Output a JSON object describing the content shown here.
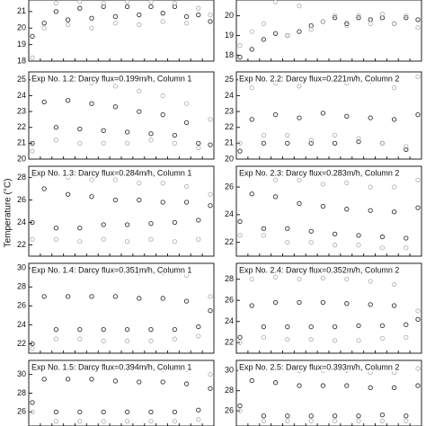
{
  "ylabel": "Temperature (°C)",
  "chart_data": [
    {
      "type": "scatter",
      "ylim": [
        18,
        21.7
      ],
      "yticks": [
        18,
        19,
        20,
        21
      ],
      "series": [
        {
          "color": "#333333",
          "values": [
            19.5,
            20.3,
            21,
            20.5,
            21.2,
            20.6,
            21.3,
            20.7,
            21.3,
            20.8,
            21.3,
            20.9,
            21.3,
            20.7,
            20.8,
            20.4
          ]
        },
        {
          "color": "#b5b5b5",
          "values": [
            18.2,
            20,
            21.5,
            20.2,
            21.6,
            20,
            21.5,
            20.3,
            21.6,
            20.2,
            21.6,
            20.4,
            21.5,
            20.3,
            21.2,
            20.8
          ]
        }
      ]
    },
    {
      "type": "scatter",
      "ylim": [
        17.7,
        20.8
      ],
      "yticks": [
        18,
        19,
        20
      ],
      "series": [
        {
          "color": "#333333",
          "values": [
            17.9,
            18.3,
            18.8,
            19.1,
            19.0,
            19.2,
            19.5,
            19.7,
            19.9,
            19.6,
            19.9,
            19.8,
            19.9,
            19.6,
            19.9,
            19.8
          ]
        },
        {
          "color": "#b5b5b5",
          "values": [
            18.5,
            19.2,
            19.6,
            20.7,
            19.0,
            20.5,
            19.3,
            19.7,
            20.0,
            19.5,
            20.0,
            19.6,
            20.1,
            19.6,
            20.0,
            19.4
          ]
        }
      ]
    },
    {
      "type": "scatter",
      "title": "Exp No. 1.2: Darcy flux=0.199m/h, Column 1",
      "ylim": [
        20,
        25.5
      ],
      "yticks": [
        20,
        21,
        22,
        23,
        24,
        25
      ],
      "series": [
        {
          "color": "#333333",
          "values": [
            21,
            23.6,
            22,
            23.7,
            21.9,
            23.5,
            21.8,
            23.3,
            21.7,
            23.0,
            21.6,
            22.8,
            21.5,
            22.3,
            21.0,
            20.9
          ]
        },
        {
          "color": "#b5b5b5",
          "values": [
            20.5,
            25.2,
            21.2,
            25.0,
            21.0,
            24.8,
            21.0,
            24.6,
            21.0,
            24.3,
            21.2,
            24.0,
            21.0,
            23.5,
            20.7,
            22.5
          ]
        }
      ]
    },
    {
      "type": "scatter",
      "title": "Exp No. 2.2: Darcy flux=0.221m/h, Column 2",
      "ylim": [
        20,
        25.5
      ],
      "yticks": [
        20,
        21,
        22,
        23,
        24,
        25
      ],
      "series": [
        {
          "color": "#333333",
          "values": [
            20.5,
            22.5,
            21,
            22.8,
            21,
            22.6,
            21,
            22.9,
            21,
            22.7,
            21.1,
            22.6,
            21,
            22.5,
            20.6,
            22.8
          ]
        },
        {
          "color": "#b5b5b5",
          "values": [
            21,
            24.5,
            21.5,
            24.8,
            21.5,
            24.6,
            21.2,
            25.0,
            21.5,
            24.8,
            21.3,
            24.9,
            21.0,
            24.5,
            20.8,
            25.2
          ]
        }
      ]
    },
    {
      "type": "scatter",
      "title": "Exp No. 1.3: Darcy flux=0.284m/h, Column 1",
      "ylim": [
        21,
        29
      ],
      "yticks": [
        22,
        24,
        26,
        28
      ],
      "series": [
        {
          "color": "#333333",
          "values": [
            24,
            27,
            23.5,
            26.5,
            23.5,
            26.3,
            23.8,
            26.0,
            23.8,
            26.0,
            23.9,
            25.8,
            24,
            25.8,
            24.2,
            25.5
          ]
        },
        {
          "color": "#b5b5b5",
          "values": [
            22.5,
            28.2,
            22.5,
            28.0,
            22.3,
            27.8,
            22.5,
            27.8,
            22.3,
            27.5,
            22.5,
            27.5,
            22.3,
            27.2,
            22.5,
            26.5
          ]
        }
      ]
    },
    {
      "type": "scatter",
      "title": "Exp No. 2.3: Darcy flux=0.283m/h, Column 2",
      "ylim": [
        21,
        27.5
      ],
      "yticks": [
        22,
        24,
        26
      ],
      "series": [
        {
          "color": "#333333",
          "values": [
            23.5,
            25.5,
            23,
            25.3,
            23,
            24.8,
            22.8,
            24.6,
            22.6,
            24.4,
            22.5,
            24.3,
            22.4,
            24.2,
            22.3,
            24.5
          ]
        },
        {
          "color": "#b5b5b5",
          "values": [
            22.5,
            27,
            22.5,
            26.5,
            22,
            26.5,
            22,
            26.2,
            21.8,
            26.3,
            21.8,
            26,
            21.6,
            26,
            21.6,
            26.5
          ]
        }
      ]
    },
    {
      "type": "scatter",
      "title": "Exp No. 1.4: Darcy flux=0.351m/h, Column 1",
      "ylim": [
        21,
        30.5
      ],
      "yticks": [
        22,
        24,
        26,
        28,
        30
      ],
      "series": [
        {
          "color": "#333333",
          "values": [
            22,
            27,
            23.5,
            27,
            23.5,
            27,
            23.5,
            27,
            23.5,
            26.8,
            23.5,
            26.8,
            23.5,
            26.5,
            23.8,
            25.5
          ]
        },
        {
          "color": "#b5b5b5",
          "values": [
            21.5,
            29.8,
            22.5,
            29.8,
            22.5,
            29.7,
            22.3,
            29.8,
            22.3,
            29.5,
            22.3,
            29.5,
            22.5,
            29.2,
            22.8,
            27
          ]
        }
      ]
    },
    {
      "type": "scatter",
      "title": "Exp No. 2.4: Darcy flux=0.352m/h, Column 2",
      "ylim": [
        21,
        29.5
      ],
      "yticks": [
        22,
        24,
        26,
        28
      ],
      "series": [
        {
          "color": "#333333",
          "values": [
            22.5,
            25.5,
            23.5,
            25.8,
            23.5,
            25.8,
            23.5,
            25.8,
            23.5,
            25.7,
            23.6,
            25.6,
            23.6,
            25.5,
            23.7,
            24.2
          ]
        },
        {
          "color": "#b5b5b5",
          "values": [
            22,
            28,
            22.5,
            28.2,
            22.3,
            28,
            22.3,
            28.1,
            22.2,
            28,
            22.2,
            27.8,
            22.4,
            27.5,
            22.5,
            25
          ]
        }
      ]
    },
    {
      "type": "scatter",
      "title": "Exp No. 1.5: Darcy flux=0.394m/h, Column 1",
      "ylim": [
        24.5,
        31.5
      ],
      "yticks": [
        26,
        28,
        30
      ],
      "series": [
        {
          "color": "#333333",
          "values": [
            27,
            29.5,
            26,
            29.5,
            26,
            29.5,
            26,
            29.3,
            26,
            29.2,
            26,
            29.2,
            26,
            29,
            26.2,
            28.5
          ]
        },
        {
          "color": "#b5b5b5",
          "values": [
            26,
            31,
            25,
            31,
            25,
            31,
            25,
            30.8,
            25,
            30.8,
            25,
            30.5,
            25,
            30.5,
            25.2,
            30
          ]
        }
      ]
    },
    {
      "type": "scatter",
      "title": "Exp No. 2.5: Darcy flux=0.393m/h, Column 2",
      "ylim": [
        24.5,
        31
      ],
      "yticks": [
        26,
        28,
        30
      ],
      "series": [
        {
          "color": "#333333",
          "values": [
            26.5,
            29,
            25.5,
            28.8,
            25.5,
            28.5,
            25.5,
            28.5,
            25.5,
            28.5,
            25.5,
            28.3,
            25.6,
            28.3,
            25.5,
            28.5
          ]
        },
        {
          "color": "#b5b5b5",
          "values": [
            26,
            30.3,
            25,
            30.2,
            25,
            30,
            25,
            30,
            25,
            30,
            25,
            29.8,
            25,
            29.8,
            25,
            30.2
          ]
        }
      ]
    }
  ]
}
